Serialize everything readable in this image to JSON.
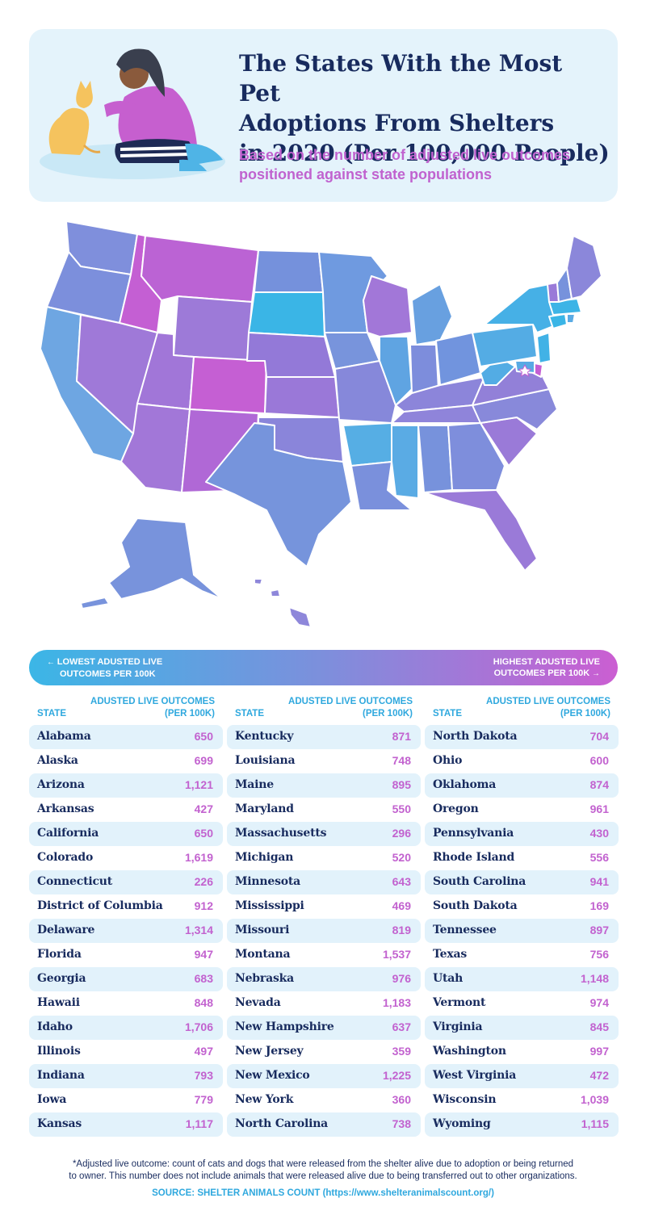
{
  "header": {
    "title_lines": [
      "The States With the Most Pet",
      "Adoptions From Shelters",
      "in 2020 (Per 100,000 People)"
    ],
    "subtitle_lines": [
      "Based on the number of adjusted live outcomes",
      "positioned against state populations"
    ]
  },
  "legend": {
    "low_lines": [
      "LOWEST ADUSTED LIVE",
      "OUTCOMES PER 100K"
    ],
    "high_lines": [
      "HIGHEST ADUSTED LIVE",
      "OUTCOMES PER 100K"
    ],
    "low_color": "#3bb6e6",
    "mid_color": "#7d8fdc",
    "high_color": "#cb5ed2"
  },
  "table": {
    "state_header": "STATE",
    "value_header_lines": [
      "ADUSTED LIVE OUTCOMES",
      "(PER 100K)"
    ],
    "columns": [
      [
        {
          "state": "Alabama",
          "value": "650"
        },
        {
          "state": "Alaska",
          "value": "699"
        },
        {
          "state": "Arizona",
          "value": "1,121"
        },
        {
          "state": "Arkansas",
          "value": "427"
        },
        {
          "state": "California",
          "value": "650"
        },
        {
          "state": "Colorado",
          "value": "1,619"
        },
        {
          "state": "Connecticut",
          "value": "226"
        },
        {
          "state": "District of Columbia",
          "value": "912"
        },
        {
          "state": "Delaware",
          "value": "1,314"
        },
        {
          "state": "Florida",
          "value": "947"
        },
        {
          "state": "Georgia",
          "value": "683"
        },
        {
          "state": "Hawaii",
          "value": "848"
        },
        {
          "state": "Idaho",
          "value": "1,706"
        },
        {
          "state": "Illinois",
          "value": "497"
        },
        {
          "state": "Indiana",
          "value": "793"
        },
        {
          "state": "Iowa",
          "value": "779"
        },
        {
          "state": "Kansas",
          "value": "1,117"
        }
      ],
      [
        {
          "state": "Kentucky",
          "value": "871"
        },
        {
          "state": "Louisiana",
          "value": "748"
        },
        {
          "state": "Maine",
          "value": "895"
        },
        {
          "state": "Maryland",
          "value": "550"
        },
        {
          "state": "Massachusetts",
          "value": "296"
        },
        {
          "state": "Michigan",
          "value": "520"
        },
        {
          "state": "Minnesota",
          "value": "643"
        },
        {
          "state": "Mississippi",
          "value": "469"
        },
        {
          "state": "Missouri",
          "value": "819"
        },
        {
          "state": "Montana",
          "value": "1,537"
        },
        {
          "state": "Nebraska",
          "value": "976"
        },
        {
          "state": "Nevada",
          "value": "1,183"
        },
        {
          "state": "New Hampshire",
          "value": "637"
        },
        {
          "state": "New Jersey",
          "value": "359"
        },
        {
          "state": "New Mexico",
          "value": "1,225"
        },
        {
          "state": "New York",
          "value": "360"
        },
        {
          "state": "North Carolina",
          "value": "738"
        }
      ],
      [
        {
          "state": "North Dakota",
          "value": "704"
        },
        {
          "state": "Ohio",
          "value": "600"
        },
        {
          "state": "Oklahoma",
          "value": "874"
        },
        {
          "state": "Oregon",
          "value": "961"
        },
        {
          "state": "Pennsylvania",
          "value": "430"
        },
        {
          "state": "Rhode Island",
          "value": "556"
        },
        {
          "state": "South Carolina",
          "value": "941"
        },
        {
          "state": "South Dakota",
          "value": "169"
        },
        {
          "state": "Tennessee",
          "value": "897"
        },
        {
          "state": "Texas",
          "value": "756"
        },
        {
          "state": "Utah",
          "value": "1,148"
        },
        {
          "state": "Vermont",
          "value": "974"
        },
        {
          "state": "Virginia",
          "value": "845"
        },
        {
          "state": "Washington",
          "value": "997"
        },
        {
          "state": "West Virginia",
          "value": "472"
        },
        {
          "state": "Wisconsin",
          "value": "1,039"
        },
        {
          "state": "Wyoming",
          "value": "1,115"
        }
      ]
    ]
  },
  "footnote_lines": [
    "*Adjusted live outcome: count of cats and dogs that were released from the shelter alive due to adoption or being returned",
    "to owner. This number does not include animals that were released alive due to being transferred out to other organizations."
  ],
  "source": "SOURCE: SHELTER ANIMALS COUNT (https://www.shelteranimalscount.org/)"
}
